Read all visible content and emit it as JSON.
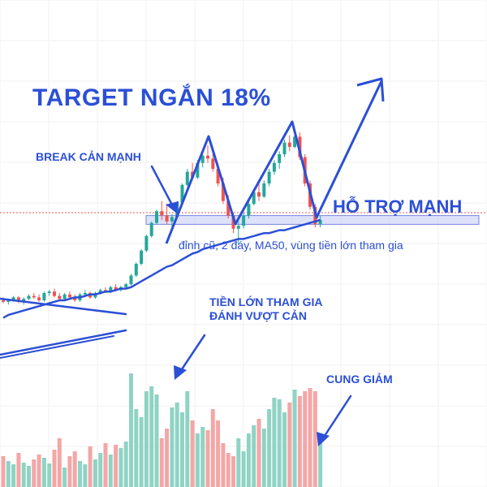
{
  "annotations": {
    "title": "TARGET NGẮN 18%",
    "break_text": "BREAK CẢN MẠNH",
    "support_text": "HỖ TRỢ MẠNH",
    "support_reason": "đỉnh cũ, 2 đáy, MA50, vùng tiền lớn tham gia",
    "money_line1": "TIỀN LỚN THAM GIA",
    "money_line2": "ĐÁNH VƯỢT CẢN",
    "cung_text": "CUNG GIẢM"
  },
  "colors": {
    "up": "#26a69a",
    "down": "#ef5350",
    "volume_up": "#8fd3c4",
    "volume_down": "#f4a6a6",
    "annotation": "#2b4fd6",
    "support_zone": "#c7cdf5",
    "dotted_line": "#ef5350"
  },
  "chart_data": [
    {
      "type": "candlestick",
      "title": "",
      "series": [
        {
          "name": "",
          "values": [
            {
              "o": 50,
              "h": 52,
              "l": 48,
              "c": 49
            },
            {
              "o": 49,
              "h": 51,
              "l": 47,
              "c": 50
            },
            {
              "o": 50,
              "h": 53,
              "l": 49,
              "c": 52
            },
            {
              "o": 52,
              "h": 53,
              "l": 48,
              "c": 49
            },
            {
              "o": 49,
              "h": 52,
              "l": 47,
              "c": 51
            },
            {
              "o": 51,
              "h": 54,
              "l": 50,
              "c": 53
            },
            {
              "o": 53,
              "h": 55,
              "l": 51,
              "c": 52
            },
            {
              "o": 52,
              "h": 54,
              "l": 49,
              "c": 50
            },
            {
              "o": 50,
              "h": 56,
              "l": 49,
              "c": 55
            },
            {
              "o": 55,
              "h": 57,
              "l": 53,
              "c": 56
            },
            {
              "o": 56,
              "h": 58,
              "l": 52,
              "c": 53
            },
            {
              "o": 53,
              "h": 55,
              "l": 50,
              "c": 51
            },
            {
              "o": 51,
              "h": 55,
              "l": 50,
              "c": 54
            },
            {
              "o": 54,
              "h": 56,
              "l": 51,
              "c": 52
            },
            {
              "o": 52,
              "h": 54,
              "l": 49,
              "c": 50
            },
            {
              "o": 50,
              "h": 55,
              "l": 49,
              "c": 54
            },
            {
              "o": 54,
              "h": 57,
              "l": 52,
              "c": 55
            },
            {
              "o": 55,
              "h": 56,
              "l": 51,
              "c": 52
            },
            {
              "o": 52,
              "h": 56,
              "l": 51,
              "c": 55
            },
            {
              "o": 55,
              "h": 58,
              "l": 54,
              "c": 57
            },
            {
              "o": 57,
              "h": 59,
              "l": 55,
              "c": 56
            },
            {
              "o": 56,
              "h": 60,
              "l": 55,
              "c": 59
            },
            {
              "o": 59,
              "h": 61,
              "l": 56,
              "c": 57
            },
            {
              "o": 57,
              "h": 60,
              "l": 56,
              "c": 59
            },
            {
              "o": 59,
              "h": 62,
              "l": 58,
              "c": 61
            },
            {
              "o": 61,
              "h": 68,
              "l": 60,
              "c": 67
            },
            {
              "o": 67,
              "h": 76,
              "l": 66,
              "c": 75
            },
            {
              "o": 75,
              "h": 85,
              "l": 74,
              "c": 84
            },
            {
              "o": 84,
              "h": 95,
              "l": 83,
              "c": 94
            },
            {
              "o": 94,
              "h": 104,
              "l": 93,
              "c": 103
            },
            {
              "o": 103,
              "h": 112,
              "l": 102,
              "c": 111
            },
            {
              "o": 111,
              "h": 118,
              "l": 105,
              "c": 108
            },
            {
              "o": 108,
              "h": 116,
              "l": 102,
              "c": 104
            },
            {
              "o": 104,
              "h": 109,
              "l": 100,
              "c": 107
            },
            {
              "o": 107,
              "h": 118,
              "l": 106,
              "c": 117
            },
            {
              "o": 117,
              "h": 130,
              "l": 116,
              "c": 129
            },
            {
              "o": 129,
              "h": 140,
              "l": 128,
              "c": 138
            },
            {
              "o": 138,
              "h": 144,
              "l": 132,
              "c": 134
            },
            {
              "o": 134,
              "h": 146,
              "l": 133,
              "c": 144
            },
            {
              "o": 144,
              "h": 152,
              "l": 141,
              "c": 149
            },
            {
              "o": 149,
              "h": 156,
              "l": 144,
              "c": 147
            },
            {
              "o": 147,
              "h": 150,
              "l": 138,
              "c": 140
            },
            {
              "o": 140,
              "h": 142,
              "l": 128,
              "c": 130
            },
            {
              "o": 130,
              "h": 134,
              "l": 116,
              "c": 118
            },
            {
              "o": 118,
              "h": 122,
              "l": 106,
              "c": 108
            },
            {
              "o": 108,
              "h": 110,
              "l": 96,
              "c": 99
            },
            {
              "o": 99,
              "h": 104,
              "l": 88,
              "c": 101
            },
            {
              "o": 101,
              "h": 110,
              "l": 99,
              "c": 108
            },
            {
              "o": 108,
              "h": 118,
              "l": 106,
              "c": 116
            },
            {
              "o": 116,
              "h": 126,
              "l": 115,
              "c": 124
            },
            {
              "o": 124,
              "h": 130,
              "l": 118,
              "c": 121
            },
            {
              "o": 121,
              "h": 132,
              "l": 120,
              "c": 130
            },
            {
              "o": 130,
              "h": 140,
              "l": 128,
              "c": 138
            },
            {
              "o": 138,
              "h": 146,
              "l": 136,
              "c": 144
            },
            {
              "o": 144,
              "h": 152,
              "l": 140,
              "c": 150
            },
            {
              "o": 150,
              "h": 160,
              "l": 148,
              "c": 158
            },
            {
              "o": 158,
              "h": 163,
              "l": 152,
              "c": 155
            },
            {
              "o": 155,
              "h": 164,
              "l": 154,
              "c": 162
            },
            {
              "o": 162,
              "h": 165,
              "l": 146,
              "c": 148
            },
            {
              "o": 148,
              "h": 150,
              "l": 128,
              "c": 130
            },
            {
              "o": 130,
              "h": 132,
              "l": 112,
              "c": 114
            },
            {
              "o": 114,
              "h": 116,
              "l": 100,
              "c": 102
            },
            {
              "o": 102,
              "h": 108,
              "l": 100,
              "c": 105
            }
          ]
        },
        {
          "name": "",
          "values": [
            38,
            40,
            41,
            42,
            43,
            44,
            45,
            46,
            47,
            48,
            49,
            50,
            50,
            51,
            52,
            52,
            53,
            54,
            54,
            55,
            56,
            56,
            57,
            58,
            58,
            59,
            61,
            63,
            65,
            67,
            69,
            71,
            73,
            74,
            76,
            78,
            80,
            82,
            83,
            85,
            86,
            87,
            88,
            89,
            90,
            91,
            92,
            92,
            93,
            94,
            95,
            96,
            96,
            97,
            98,
            98,
            99,
            100,
            101,
            102,
            103,
            104,
            105
          ]
        }
      ],
      "volume": [
        38,
        32,
        28,
        42,
        30,
        26,
        34,
        40,
        36,
        29,
        46,
        60,
        24,
        38,
        44,
        32,
        28,
        50,
        34,
        42,
        54,
        40,
        52,
        48,
        56,
        140,
        96,
        86,
        118,
        124,
        114,
        60,
        72,
        98,
        104,
        92,
        118,
        82,
        66,
        74,
        70,
        96,
        82,
        54,
        42,
        38,
        60,
        44,
        66,
        76,
        84,
        72,
        96,
        110,
        108,
        92,
        104,
        120,
        112,
        118,
        122,
        118,
        66
      ],
      "ylim": [
        0,
        200
      ],
      "grid": true
    }
  ]
}
